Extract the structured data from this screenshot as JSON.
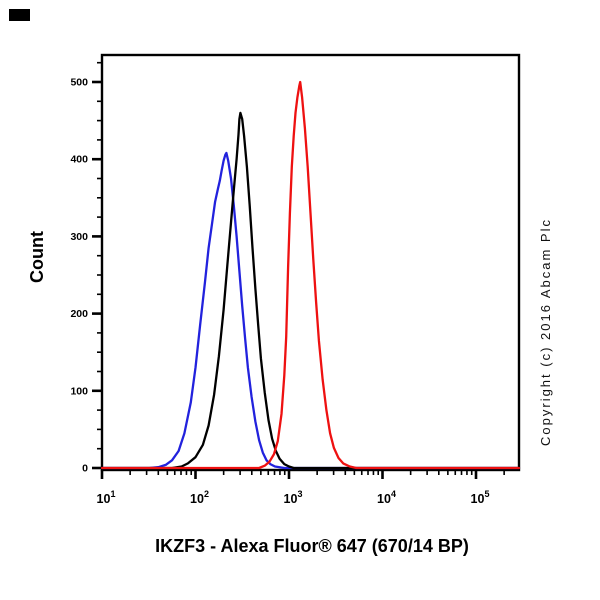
{
  "figure": {
    "title": "IKZF3 - Alexa Fluor® 647 (670/14 BP)",
    "ylabel": "Count",
    "copyright": "Copyright (c) 2016 Abcam Plc",
    "corner_mark_color": "#000000",
    "background_color": "#ffffff",
    "frame_color": "#000000"
  },
  "chart_data": {
    "type": "line",
    "subtype": "flow-cytometry-histogram",
    "title": "IKZF3 - Alexa Fluor® 647 (670/14 BP)",
    "xlabel": "IKZF3 - Alexa Fluor® 647 (670/14 BP)",
    "ylabel": "Count",
    "x_scale": "log10",
    "x_range_log10": [
      1.0,
      5.46
    ],
    "x_decade_ticks": [
      1,
      2,
      3,
      4,
      5
    ],
    "ylim": [
      0,
      535
    ],
    "y_major_ticks": [
      0,
      100,
      200,
      300,
      400,
      500
    ],
    "y_minor_step": 25,
    "y_minor_max": 525,
    "grid": false,
    "legend_position": "none",
    "series": [
      {
        "name": "blue-curve",
        "color": "#2222dd",
        "peak": {
          "x": 210,
          "count": 408
        },
        "points": [
          [
            32,
            0
          ],
          [
            40,
            1
          ],
          [
            48,
            4
          ],
          [
            56,
            10
          ],
          [
            66,
            22
          ],
          [
            76,
            45
          ],
          [
            89,
            85
          ],
          [
            100,
            130
          ],
          [
            112,
            185
          ],
          [
            126,
            240
          ],
          [
            138,
            285
          ],
          [
            151,
            318
          ],
          [
            162,
            345
          ],
          [
            174,
            362
          ],
          [
            182,
            372
          ],
          [
            190,
            385
          ],
          [
            200,
            398
          ],
          [
            209,
            406
          ],
          [
            214,
            408
          ],
          [
            224,
            398
          ],
          [
            240,
            375
          ],
          [
            257,
            340
          ],
          [
            275,
            300
          ],
          [
            295,
            255
          ],
          [
            316,
            210
          ],
          [
            339,
            168
          ],
          [
            363,
            130
          ],
          [
            398,
            92
          ],
          [
            437,
            60
          ],
          [
            479,
            36
          ],
          [
            525,
            20
          ],
          [
            575,
            10
          ],
          [
            631,
            5
          ],
          [
            708,
            2
          ],
          [
            891,
            0
          ]
        ]
      },
      {
        "name": "black-curve",
        "color": "#000000",
        "peak": {
          "x": 300,
          "count": 460
        },
        "points": [
          [
            56,
            0
          ],
          [
            71,
            2
          ],
          [
            83,
            6
          ],
          [
            100,
            14
          ],
          [
            120,
            30
          ],
          [
            138,
            55
          ],
          [
            158,
            95
          ],
          [
            178,
            145
          ],
          [
            200,
            205
          ],
          [
            219,
            262
          ],
          [
            240,
            318
          ],
          [
            257,
            360
          ],
          [
            275,
            400
          ],
          [
            288,
            432
          ],
          [
            295,
            452
          ],
          [
            302,
            460
          ],
          [
            316,
            452
          ],
          [
            331,
            430
          ],
          [
            355,
            390
          ],
          [
            380,
            340
          ],
          [
            407,
            285
          ],
          [
            437,
            232
          ],
          [
            468,
            185
          ],
          [
            501,
            142
          ],
          [
            550,
            98
          ],
          [
            603,
            62
          ],
          [
            660,
            38
          ],
          [
            724,
            22
          ],
          [
            794,
            12
          ],
          [
            891,
            5
          ],
          [
            1000,
            2
          ],
          [
            1122,
            0
          ]
        ]
      },
      {
        "name": "red-curve",
        "color": "#ee1111",
        "peak": {
          "x": 1318,
          "count": 500
        },
        "points": [
          [
            479,
            0
          ],
          [
            550,
            3
          ],
          [
            617,
            8
          ],
          [
            692,
            18
          ],
          [
            759,
            35
          ],
          [
            832,
            70
          ],
          [
            891,
            120
          ],
          [
            933,
            170
          ],
          [
            977,
            260
          ],
          [
            1023,
            330
          ],
          [
            1072,
            390
          ],
          [
            1122,
            430
          ],
          [
            1175,
            460
          ],
          [
            1230,
            480
          ],
          [
            1288,
            495
          ],
          [
            1318,
            500
          ],
          [
            1380,
            480
          ],
          [
            1479,
            440
          ],
          [
            1585,
            390
          ],
          [
            1698,
            330
          ],
          [
            1820,
            270
          ],
          [
            1950,
            215
          ],
          [
            2089,
            165
          ],
          [
            2290,
            115
          ],
          [
            2512,
            75
          ],
          [
            2754,
            45
          ],
          [
            3020,
            26
          ],
          [
            3388,
            13
          ],
          [
            3802,
            6
          ],
          [
            4467,
            2
          ],
          [
            5248,
            0
          ]
        ]
      }
    ]
  }
}
